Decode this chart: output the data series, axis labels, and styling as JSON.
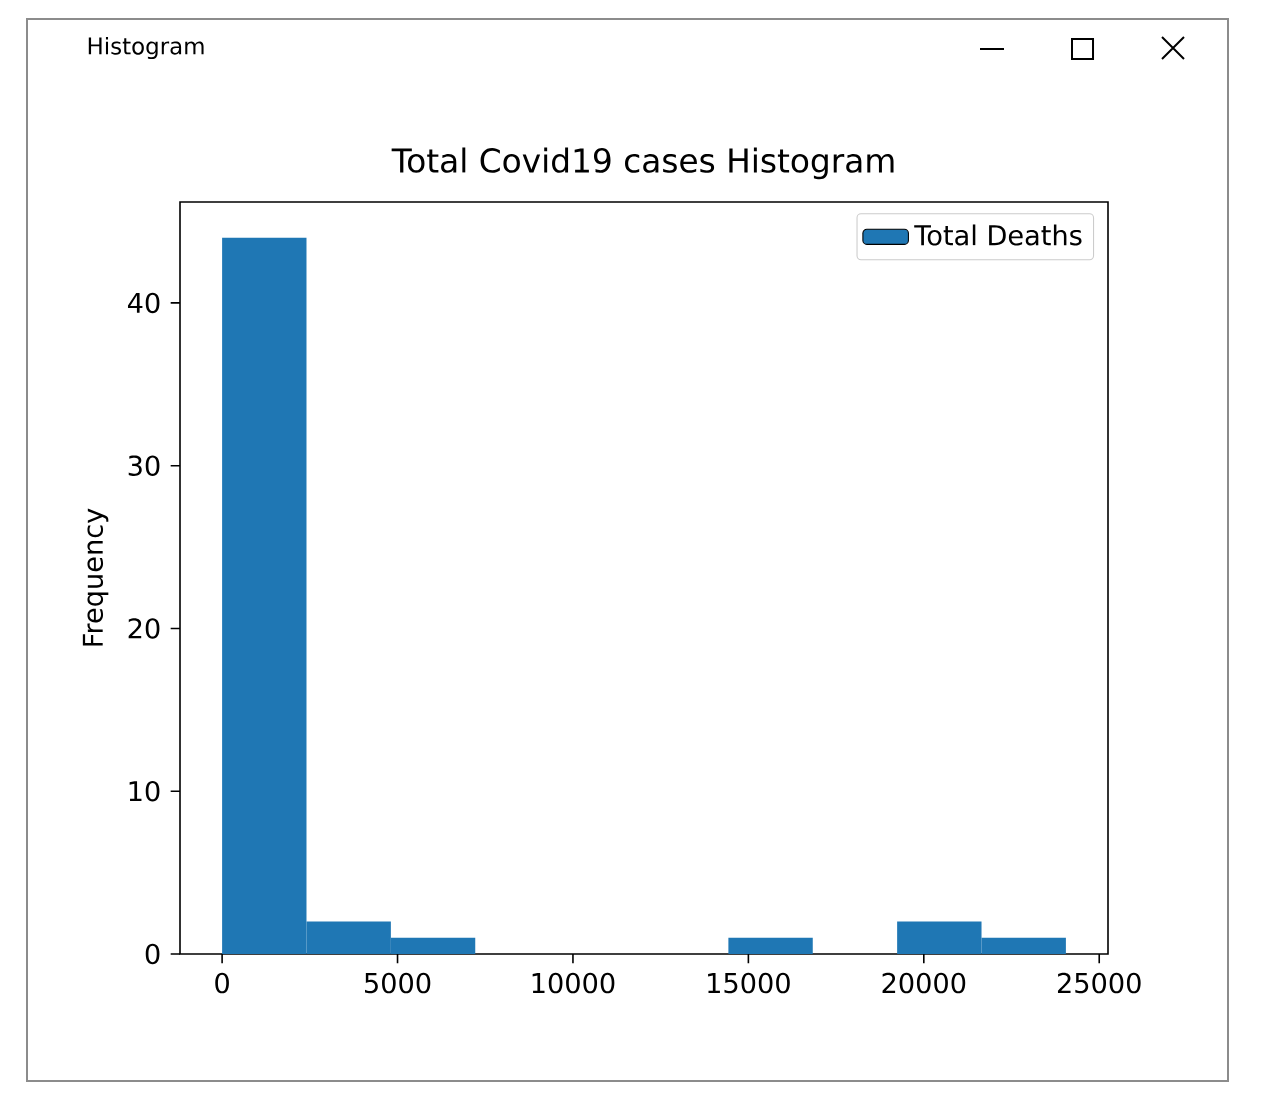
{
  "chart_data": {
    "type": "histogram",
    "title": "Total Covid19 cases Histogram",
    "ylabel": "Frequency",
    "annotations": [
      "Histogram"
    ],
    "bins": [
      0,
      2405,
      4810,
      7215,
      9620,
      12025,
      14430,
      16835,
      19240,
      21645,
      24050
    ],
    "series": [
      {
        "name": "Total  Deaths",
        "color": "#1f77b4",
        "values": [
          44,
          2,
          1,
          0,
          0,
          0,
          1,
          0,
          2,
          1
        ]
      }
    ],
    "xlim": [
      -1200,
      25250
    ],
    "ylim": [
      0,
      46.2
    ],
    "xticks": [
      0,
      5000,
      10000,
      15000,
      20000,
      25000
    ],
    "yticks": [
      0,
      10,
      20,
      30,
      40
    ],
    "legend": "top right"
  }
}
